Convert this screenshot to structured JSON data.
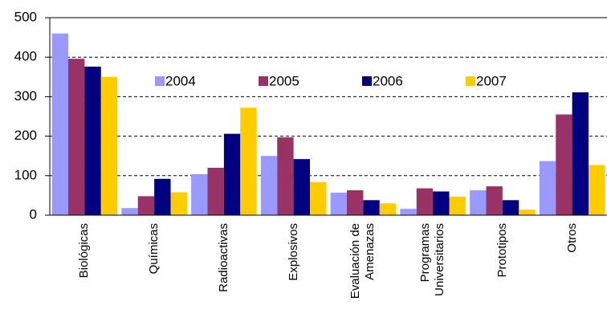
{
  "chart_data": {
    "type": "bar",
    "categories": [
      "Biológicas",
      "Químicas",
      "Radioactivas",
      "Explosivos",
      "Evaluación de Amenazas",
      "Programas Universitarios",
      "Prototipos",
      "Otros"
    ],
    "series": [
      {
        "name": "2004",
        "color": "#9999ff",
        "values": [
          460,
          18,
          104,
          150,
          57,
          16,
          63,
          137
        ]
      },
      {
        "name": "2005",
        "color": "#993366",
        "values": [
          396,
          48,
          120,
          197,
          63,
          68,
          73,
          255
        ]
      },
      {
        "name": "2006",
        "color": "#000080",
        "values": [
          376,
          92,
          206,
          142,
          38,
          60,
          38,
          311
        ]
      },
      {
        "name": "2007",
        "color": "#ffcc00",
        "values": [
          350,
          58,
          272,
          84,
          30,
          47,
          14,
          127
        ]
      }
    ],
    "ylim": [
      0,
      500
    ],
    "yticks": [
      0,
      100,
      200,
      300,
      400,
      500
    ],
    "grid": true,
    "legend": "top"
  }
}
